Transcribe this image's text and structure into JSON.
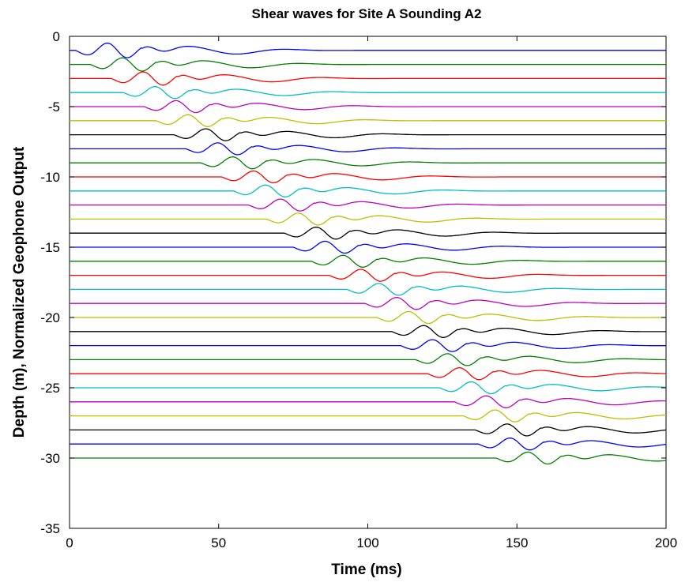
{
  "chart_data": {
    "type": "line",
    "title": "Shear waves for Site A Sounding A2",
    "xlabel": "Time (ms)",
    "ylabel": "Depth (m), Normalized Geophone Output",
    "xlim": [
      0,
      200
    ],
    "ylim": [
      -35,
      0
    ],
    "xticks": [
      0,
      50,
      100,
      150,
      200
    ],
    "yticks": [
      0,
      -5,
      -10,
      -15,
      -20,
      -25,
      -30,
      -35
    ],
    "xtick_labels": [
      "0",
      "50",
      "100",
      "150",
      "200"
    ],
    "ytick_labels": [
      "0",
      "-5",
      "-10",
      "-15",
      "-20",
      "-25",
      "-30",
      "-35"
    ],
    "grid": false,
    "legend": "none",
    "colors": [
      "#0000ff",
      "#008000",
      "#ff0000",
      "#00bfbf",
      "#bf00bf",
      "#bfbf00",
      "#000000"
    ],
    "series": [
      {
        "depth": -1,
        "arrival_ms": 10,
        "amplitude": 0.55
      },
      {
        "depth": -2,
        "arrival_ms": 15,
        "amplitude": 0.5
      },
      {
        "depth": -3,
        "arrival_ms": 22,
        "amplitude": 0.5
      },
      {
        "depth": -4,
        "arrival_ms": 26,
        "amplitude": 0.45
      },
      {
        "depth": -5,
        "arrival_ms": 33,
        "amplitude": 0.45
      },
      {
        "depth": -6,
        "arrival_ms": 37,
        "amplitude": 0.45
      },
      {
        "depth": -7,
        "arrival_ms": 43,
        "amplitude": 0.45
      },
      {
        "depth": -8,
        "arrival_ms": 47,
        "amplitude": 0.45
      },
      {
        "depth": -9,
        "arrival_ms": 52,
        "amplitude": 0.45
      },
      {
        "depth": -10,
        "arrival_ms": 59,
        "amplitude": 0.45
      },
      {
        "depth": -11,
        "arrival_ms": 63,
        "amplitude": 0.45
      },
      {
        "depth": -12,
        "arrival_ms": 68,
        "amplitude": 0.45
      },
      {
        "depth": -13,
        "arrival_ms": 74,
        "amplitude": 0.45
      },
      {
        "depth": -14,
        "arrival_ms": 80,
        "amplitude": 0.45
      },
      {
        "depth": -15,
        "arrival_ms": 83,
        "amplitude": 0.45
      },
      {
        "depth": -16,
        "arrival_ms": 89,
        "amplitude": 0.45
      },
      {
        "depth": -17,
        "arrival_ms": 95,
        "amplitude": 0.45
      },
      {
        "depth": -18,
        "arrival_ms": 101,
        "amplitude": 0.45
      },
      {
        "depth": -19,
        "arrival_ms": 107,
        "amplitude": 0.45
      },
      {
        "depth": -20,
        "arrival_ms": 111,
        "amplitude": 0.45
      },
      {
        "depth": -21,
        "arrival_ms": 116,
        "amplitude": 0.45
      },
      {
        "depth": -22,
        "arrival_ms": 119,
        "amplitude": 0.45
      },
      {
        "depth": -23,
        "arrival_ms": 124,
        "amplitude": 0.45
      },
      {
        "depth": -24,
        "arrival_ms": 128,
        "amplitude": 0.45
      },
      {
        "depth": -25,
        "arrival_ms": 132,
        "amplitude": 0.45
      },
      {
        "depth": -26,
        "arrival_ms": 137,
        "amplitude": 0.45
      },
      {
        "depth": -27,
        "arrival_ms": 140,
        "amplitude": 0.45
      },
      {
        "depth": -28,
        "arrival_ms": 144,
        "amplitude": 0.45
      },
      {
        "depth": -29,
        "arrival_ms": 145,
        "amplitude": 0.45
      },
      {
        "depth": -30,
        "arrival_ms": 151,
        "amplitude": 0.45
      }
    ]
  }
}
